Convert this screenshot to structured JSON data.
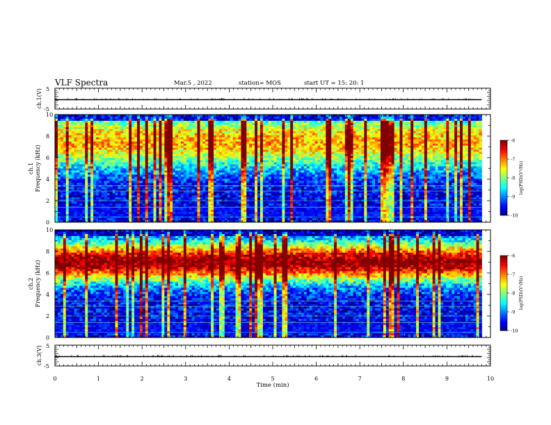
{
  "header": {
    "title": "VLF Spectra",
    "date": "Mar.5 , 2022",
    "station": "station= MOS",
    "start": "start UT =  15: 20: 1"
  },
  "chart_data": [
    {
      "type": "line",
      "title": "",
      "ylabel": "ch.1(V)",
      "xlim": [
        0,
        10
      ],
      "ylim": [
        -5,
        5
      ],
      "yticks": [
        "5",
        "-5"
      ],
      "series": [
        {
          "values": [
            [
              0,
              -0.5
            ],
            [
              9.8,
              -0.5
            ]
          ]
        }
      ]
    },
    {
      "type": "heatmap",
      "xlabel": "",
      "ylabel_top": "ch.1",
      "ylabel": "Frequency (kHz)",
      "xlim": [
        0,
        10
      ],
      "ylim": [
        0,
        10
      ],
      "yticks": [
        "0",
        "2",
        "4",
        "6",
        "8",
        "10"
      ],
      "data_xmax": 9.8,
      "intensity_profile": {
        "center_khz": 7.5,
        "width_khz": 2.6,
        "peak": 0.6,
        "floor": 0.1
      },
      "colorbar": {
        "label": "log(PSD)(V²/Hz)",
        "range": [
          -10,
          -6
        ],
        "ticks": [
          "-6",
          "-7",
          "-8",
          "-9",
          "-10"
        ]
      }
    },
    {
      "type": "heatmap",
      "xlabel": "",
      "ylabel_top": "ch.2",
      "ylabel": "Frequency (kHz)",
      "xlim": [
        0,
        10
      ],
      "ylim": [
        0,
        10
      ],
      "yticks": [
        "0",
        "2",
        "4",
        "6",
        "8",
        "10"
      ],
      "data_xmax": 9.8,
      "intensity_profile": {
        "center_khz": 7.0,
        "width_khz": 1.8,
        "peak": 0.88,
        "floor": 0.12
      },
      "colorbar": {
        "label": "log(PSD)(V²/Hz)",
        "range": [
          -10,
          -6
        ],
        "ticks": [
          "-6",
          "-7",
          "-8",
          "-9",
          "-10"
        ]
      }
    },
    {
      "type": "line",
      "ylabel": "ch.3(V)",
      "xlabel": "Time (min)",
      "xlim": [
        0,
        10
      ],
      "ylim": [
        -5,
        5
      ],
      "yticks": [
        "5",
        "-5"
      ],
      "xticks": [
        "0",
        "1",
        "2",
        "3",
        "4",
        "5",
        "6",
        "7",
        "8",
        "9",
        "10"
      ],
      "series": [
        {
          "values": [
            [
              0,
              -0.5
            ],
            [
              9.8,
              -0.5
            ]
          ]
        }
      ]
    }
  ]
}
